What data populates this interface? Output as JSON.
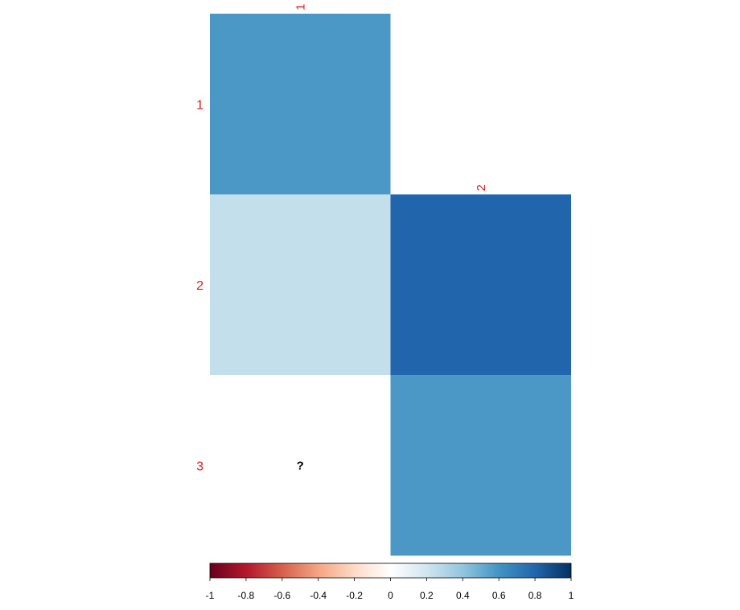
{
  "chart_data": {
    "type": "heatmap",
    "row_labels": [
      "1",
      "2",
      "3"
    ],
    "col_labels": [
      "1",
      "2"
    ],
    "cells": [
      {
        "row": 0,
        "col": 0,
        "value": 0.58
      },
      {
        "row": 1,
        "col": 0,
        "value": 0.24
      },
      {
        "row": 1,
        "col": 1,
        "value": 0.8
      },
      {
        "row": 2,
        "col": 1,
        "value": 0.58
      }
    ],
    "missing_cells": [
      {
        "row": 2,
        "col": 0,
        "label": "?"
      }
    ],
    "colorbar": {
      "min": -1,
      "max": 1,
      "tick_labels": [
        "-1",
        "-0.8",
        "-0.6",
        "-0.4",
        "-0.2",
        "0",
        "0.2",
        "0.4",
        "0.6",
        "0.8",
        "1"
      ],
      "colors": [
        "#67001F",
        "#B2182B",
        "#D6604D",
        "#F4A582",
        "#FDDBC7",
        "#FFFFFF",
        "#D1E5F0",
        "#92C5DE",
        "#4393C3",
        "#2166AC",
        "#053061"
      ]
    },
    "label_color": "#e31a1c"
  }
}
